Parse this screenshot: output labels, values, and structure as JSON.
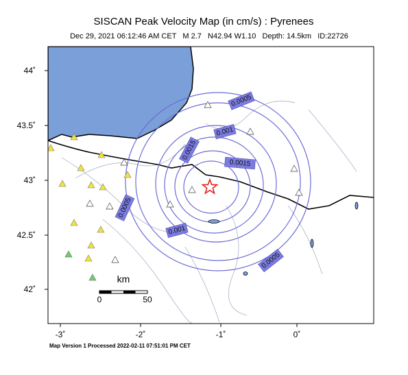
{
  "header": {
    "title": "SISCAN Peak Velocity Map (in cm/s) : Pyrenees",
    "subtitle": "Dec 29, 2021 06:12:46 AM CET   M 2.7   N42.94 W1.10   Depth: 14.5km   ID:22726"
  },
  "axes": {
    "y_labels": [
      "44˚",
      "43.5˚",
      "43˚",
      "42.5˚",
      "42˚"
    ],
    "x_labels": [
      "-3˚",
      "-2˚",
      "-1˚",
      "0˚"
    ]
  },
  "contours": {
    "labels": [
      "0.0005",
      "0.001",
      "0.0015",
      "0.0015",
      "0.0005",
      "0.001",
      "0.0005"
    ]
  },
  "scale_bar": {
    "unit": "km",
    "start": "0",
    "end": "50"
  },
  "footer": "Map Version 1 Processed 2022-02-11 07:51:01 PM CET"
}
